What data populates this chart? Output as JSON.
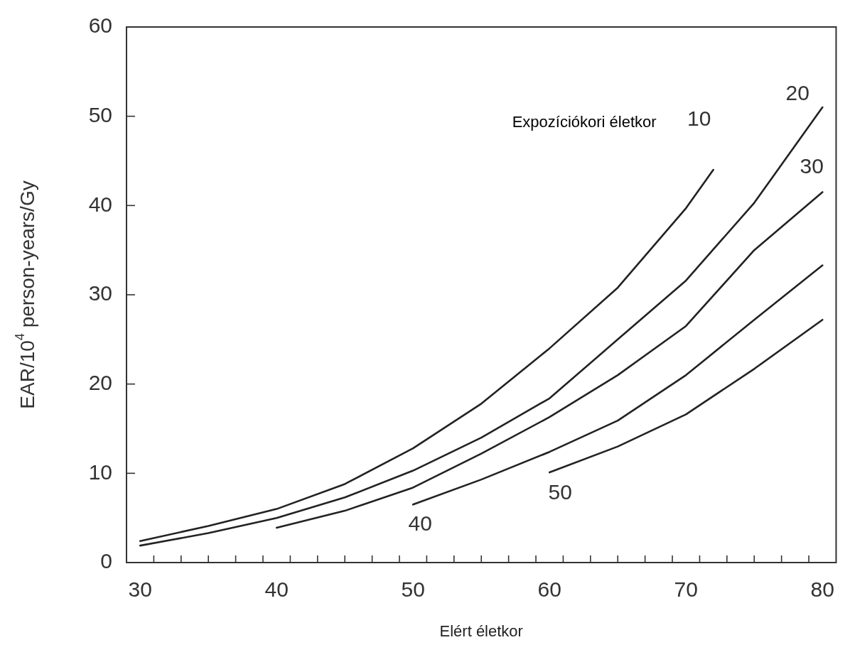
{
  "chart_data": {
    "type": "line",
    "xlabel": "Elért életkor",
    "ylabel": "EAR/10$^{4}$ person-years/Gy",
    "legend_title": "Expozíciókori életkor",
    "xlim": [
      29,
      81
    ],
    "xticks": [
      30,
      {
        "value": 31,
        "label": null
      },
      {
        "value": 33,
        "label": null
      },
      {
        "value": 35,
        "label": null
      },
      {
        "value": 37,
        "label": null
      },
      {
        "value": 39,
        "label": null
      },
      40,
      {
        "value": 41,
        "label": null
      },
      {
        "value": 43,
        "label": null
      },
      {
        "value": 45,
        "label": null
      },
      {
        "value": 47,
        "label": null
      },
      {
        "value": 49,
        "label": null
      },
      50,
      {
        "value": 51,
        "label": null
      },
      {
        "value": 53,
        "label": null
      },
      {
        "value": 55,
        "label": null
      },
      {
        "value": 57,
        "label": null
      },
      {
        "value": 59,
        "label": null
      },
      60,
      {
        "value": 61,
        "label": null
      },
      {
        "value": 63,
        "label": null
      },
      {
        "value": 65,
        "label": null
      },
      {
        "value": 67,
        "label": null
      },
      {
        "value": 69,
        "label": null
      },
      70,
      {
        "value": 71,
        "label": null
      },
      {
        "value": 73,
        "label": null
      },
      {
        "value": 75,
        "label": null
      },
      {
        "value": 77,
        "label": null
      },
      {
        "value": 79,
        "label": null
      },
      80
    ],
    "ylim": [
      0,
      60
    ],
    "yticks": [
      0,
      10,
      20,
      30,
      40,
      50,
      60
    ],
    "marker": "none",
    "line_style": "solid",
    "legend": false,
    "series": [
      {
        "name": "10",
        "color": "#222222",
        "x": [
          30,
          35,
          40,
          45,
          50,
          55,
          60,
          65,
          70,
          72
        ],
        "values": [
          2.4,
          4.1,
          6.0,
          8.8,
          12.8,
          17.8,
          24,
          30.8,
          39.7,
          44
        ]
      },
      {
        "name": "20",
        "color": "#222222",
        "x": [
          30,
          35,
          40,
          45,
          50,
          55,
          60,
          65,
          70,
          75,
          80
        ],
        "values": [
          1.9,
          3.3,
          5.0,
          7.3,
          10.3,
          14.0,
          18.4,
          25,
          31.6,
          40.3,
          51
        ]
      },
      {
        "name": "30",
        "color": "#222222",
        "x": [
          40,
          45,
          50,
          55,
          60,
          65,
          70,
          75,
          80
        ],
        "values": [
          3.9,
          5.8,
          8.4,
          12.2,
          16.3,
          21,
          26.5,
          35,
          41.5
        ]
      },
      {
        "name": "40",
        "color": "#222222",
        "x": [
          50,
          55,
          60,
          65,
          70,
          75,
          80
        ],
        "values": [
          6.5,
          9.3,
          12.4,
          15.9,
          21,
          27.2,
          33.3
        ]
      },
      {
        "name": "50",
        "color": "#222222",
        "x": [
          60,
          65,
          70,
          75,
          80
        ],
        "values": [
          10.1,
          13.0,
          16.6,
          21.7,
          27.2
        ]
      }
    ]
  }
}
